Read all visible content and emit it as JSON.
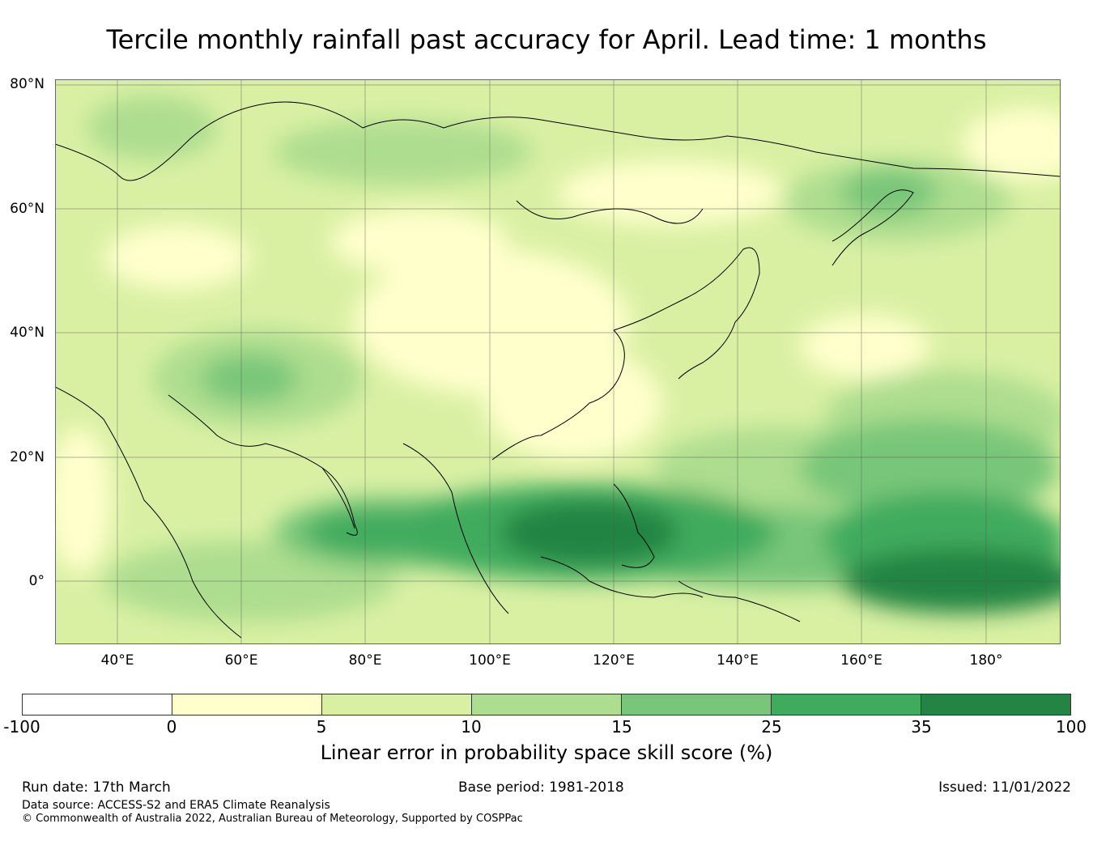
{
  "title": "Tercile monthly rainfall past accuracy for April. Lead time: 1 months",
  "map": {
    "lat_labels": [
      "80°N",
      "60°N",
      "40°N",
      "20°N",
      "0°"
    ],
    "lon_labels": [
      "40°E",
      "60°E",
      "80°E",
      "100°E",
      "120°E",
      "140°E",
      "160°E",
      "180°"
    ]
  },
  "colorbar": {
    "ticks": [
      "-100",
      "0",
      "5",
      "10",
      "15",
      "25",
      "35",
      "100"
    ],
    "colors": [
      "#ffffff",
      "#ffffcc",
      "#d9f0a3",
      "#addd8e",
      "#78c679",
      "#41ab5d",
      "#238443"
    ],
    "label": "Linear error in probability space skill score (%)"
  },
  "footer": {
    "run_date": "Run date: 17th March",
    "base_period": "Base period: 1981-2018",
    "issued": "Issued: 11/01/2022",
    "data_source": "Data source: ACCESS-S2 and ERA5 Climate Reanalysis",
    "copyright": "© Commonwealth of Australia 2022, Australian Bureau of Meteorology, Supported by COSPPac"
  }
}
